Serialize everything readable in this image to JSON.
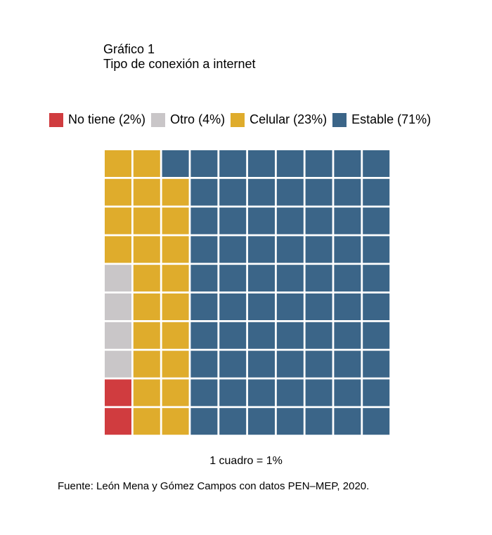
{
  "header": {
    "figure_label": "Gráfico 1",
    "title": "Tipo de conexión a internet"
  },
  "legend": {
    "items": [
      {
        "label": "No tiene (2%)",
        "color": "#d03c3f"
      },
      {
        "label": "Otro (4%)",
        "color": "#c9c6c8"
      },
      {
        "label": "Celular (23%)",
        "color": "#dfac2c"
      },
      {
        "label": "Estable (71%)",
        "color": "#3b6588"
      }
    ]
  },
  "chart_data": {
    "type": "waffle",
    "title": "Tipo de conexión a internet",
    "grid": {
      "rows": 10,
      "columns": 10
    },
    "unit_note": "1 cuadro = 1%",
    "categories": [
      "No tiene",
      "Otro",
      "Celular",
      "Estable"
    ],
    "values": [
      2,
      4,
      23,
      71
    ],
    "colors": [
      "#d03c3f",
      "#c9c6c8",
      "#dfac2c",
      "#3b6588"
    ],
    "legend_position": "top"
  },
  "footer": {
    "note": "1 cuadro = 1%",
    "source": "Fuente: León Mena y Gómez Campos con datos PEN–MEP, 2020."
  }
}
